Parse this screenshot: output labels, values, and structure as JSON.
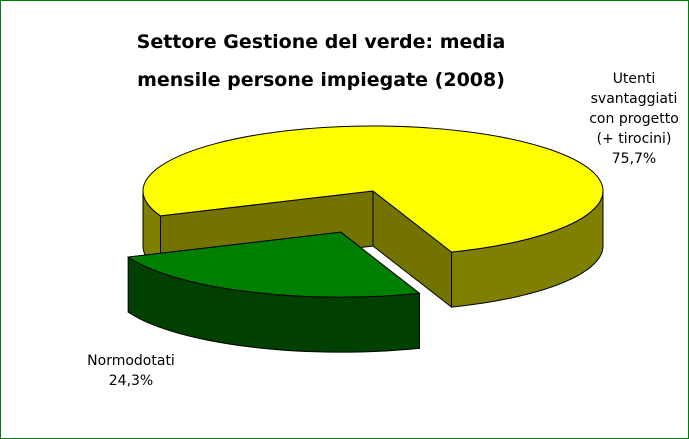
{
  "chart_data": {
    "type": "pie",
    "title": "Settore Gestione del verde: media mensile persone impiegate (2008)",
    "categories": [
      "Utenti svantaggiati con progetto (+ tirocini)",
      "Normodotati"
    ],
    "values": [
      75.7,
      24.3
    ],
    "value_labels": [
      "75,7%",
      "24,3%"
    ],
    "colors": [
      "#ffff00",
      "#008000"
    ]
  }
}
